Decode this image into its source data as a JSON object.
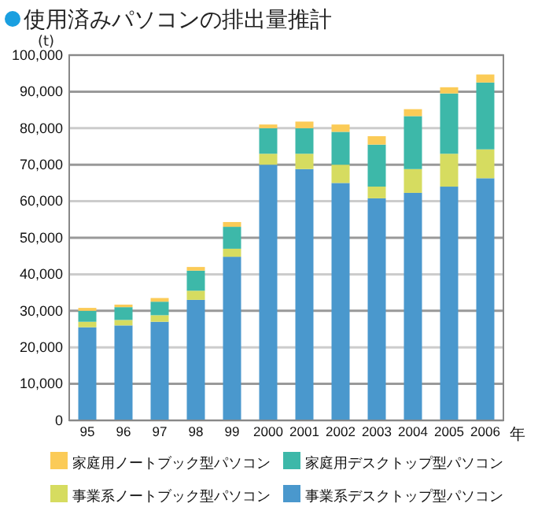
{
  "chart_data": {
    "type": "bar",
    "title": "使用済みパソコンの排出量推計",
    "ylabel": "(t)",
    "xlabel": "年",
    "categories": [
      "95",
      "96",
      "97",
      "98",
      "99",
      "2000",
      "2001",
      "2002",
      "2003",
      "2004",
      "2005",
      "2006"
    ],
    "stacked": true,
    "grid": "y",
    "legend": "bottom",
    "ylim": [
      0,
      100000
    ],
    "yticks": [
      0,
      {
        "value": 10000,
        "label": "10,000"
      },
      {
        "value": 20000,
        "label": "20,000"
      },
      {
        "value": 30000,
        "label": "30,000"
      },
      {
        "value": 40000,
        "label": "40,000"
      },
      {
        "value": 50000,
        "label": "50,000"
      },
      {
        "value": 60000,
        "label": "60,000"
      },
      {
        "value": 70000,
        "label": "70,000"
      },
      {
        "value": 80000,
        "label": "80,000"
      },
      {
        "value": 90000,
        "label": "90,000"
      },
      {
        "value": 100000,
        "label": "100,000"
      }
    ],
    "series": [
      {
        "name": "事業系デスクトップ型パソコン",
        "color": "#4a98cd",
        "values": [
          25500,
          26000,
          27000,
          33000,
          44800,
          70000,
          68800,
          65000,
          60800,
          62300,
          64000,
          66300
        ]
      },
      {
        "name": "事業系ノートブック型パソコン",
        "color": "#d6dc60",
        "values": [
          1500,
          1500,
          1800,
          2500,
          2200,
          3000,
          4200,
          5000,
          3200,
          6500,
          9000,
          7900
        ]
      },
      {
        "name": "家庭用デスクトップ型パソコン",
        "color": "#3db8a9",
        "values": [
          3000,
          3500,
          3700,
          5500,
          6000,
          7000,
          7000,
          9000,
          11500,
          14500,
          16500,
          18300
        ]
      },
      {
        "name": "家庭用ノートブック型パソコン",
        "color": "#fbcb57",
        "values": [
          800,
          700,
          1000,
          1000,
          1300,
          1000,
          1800,
          2000,
          2300,
          1900,
          1700,
          2200
        ]
      }
    ]
  }
}
